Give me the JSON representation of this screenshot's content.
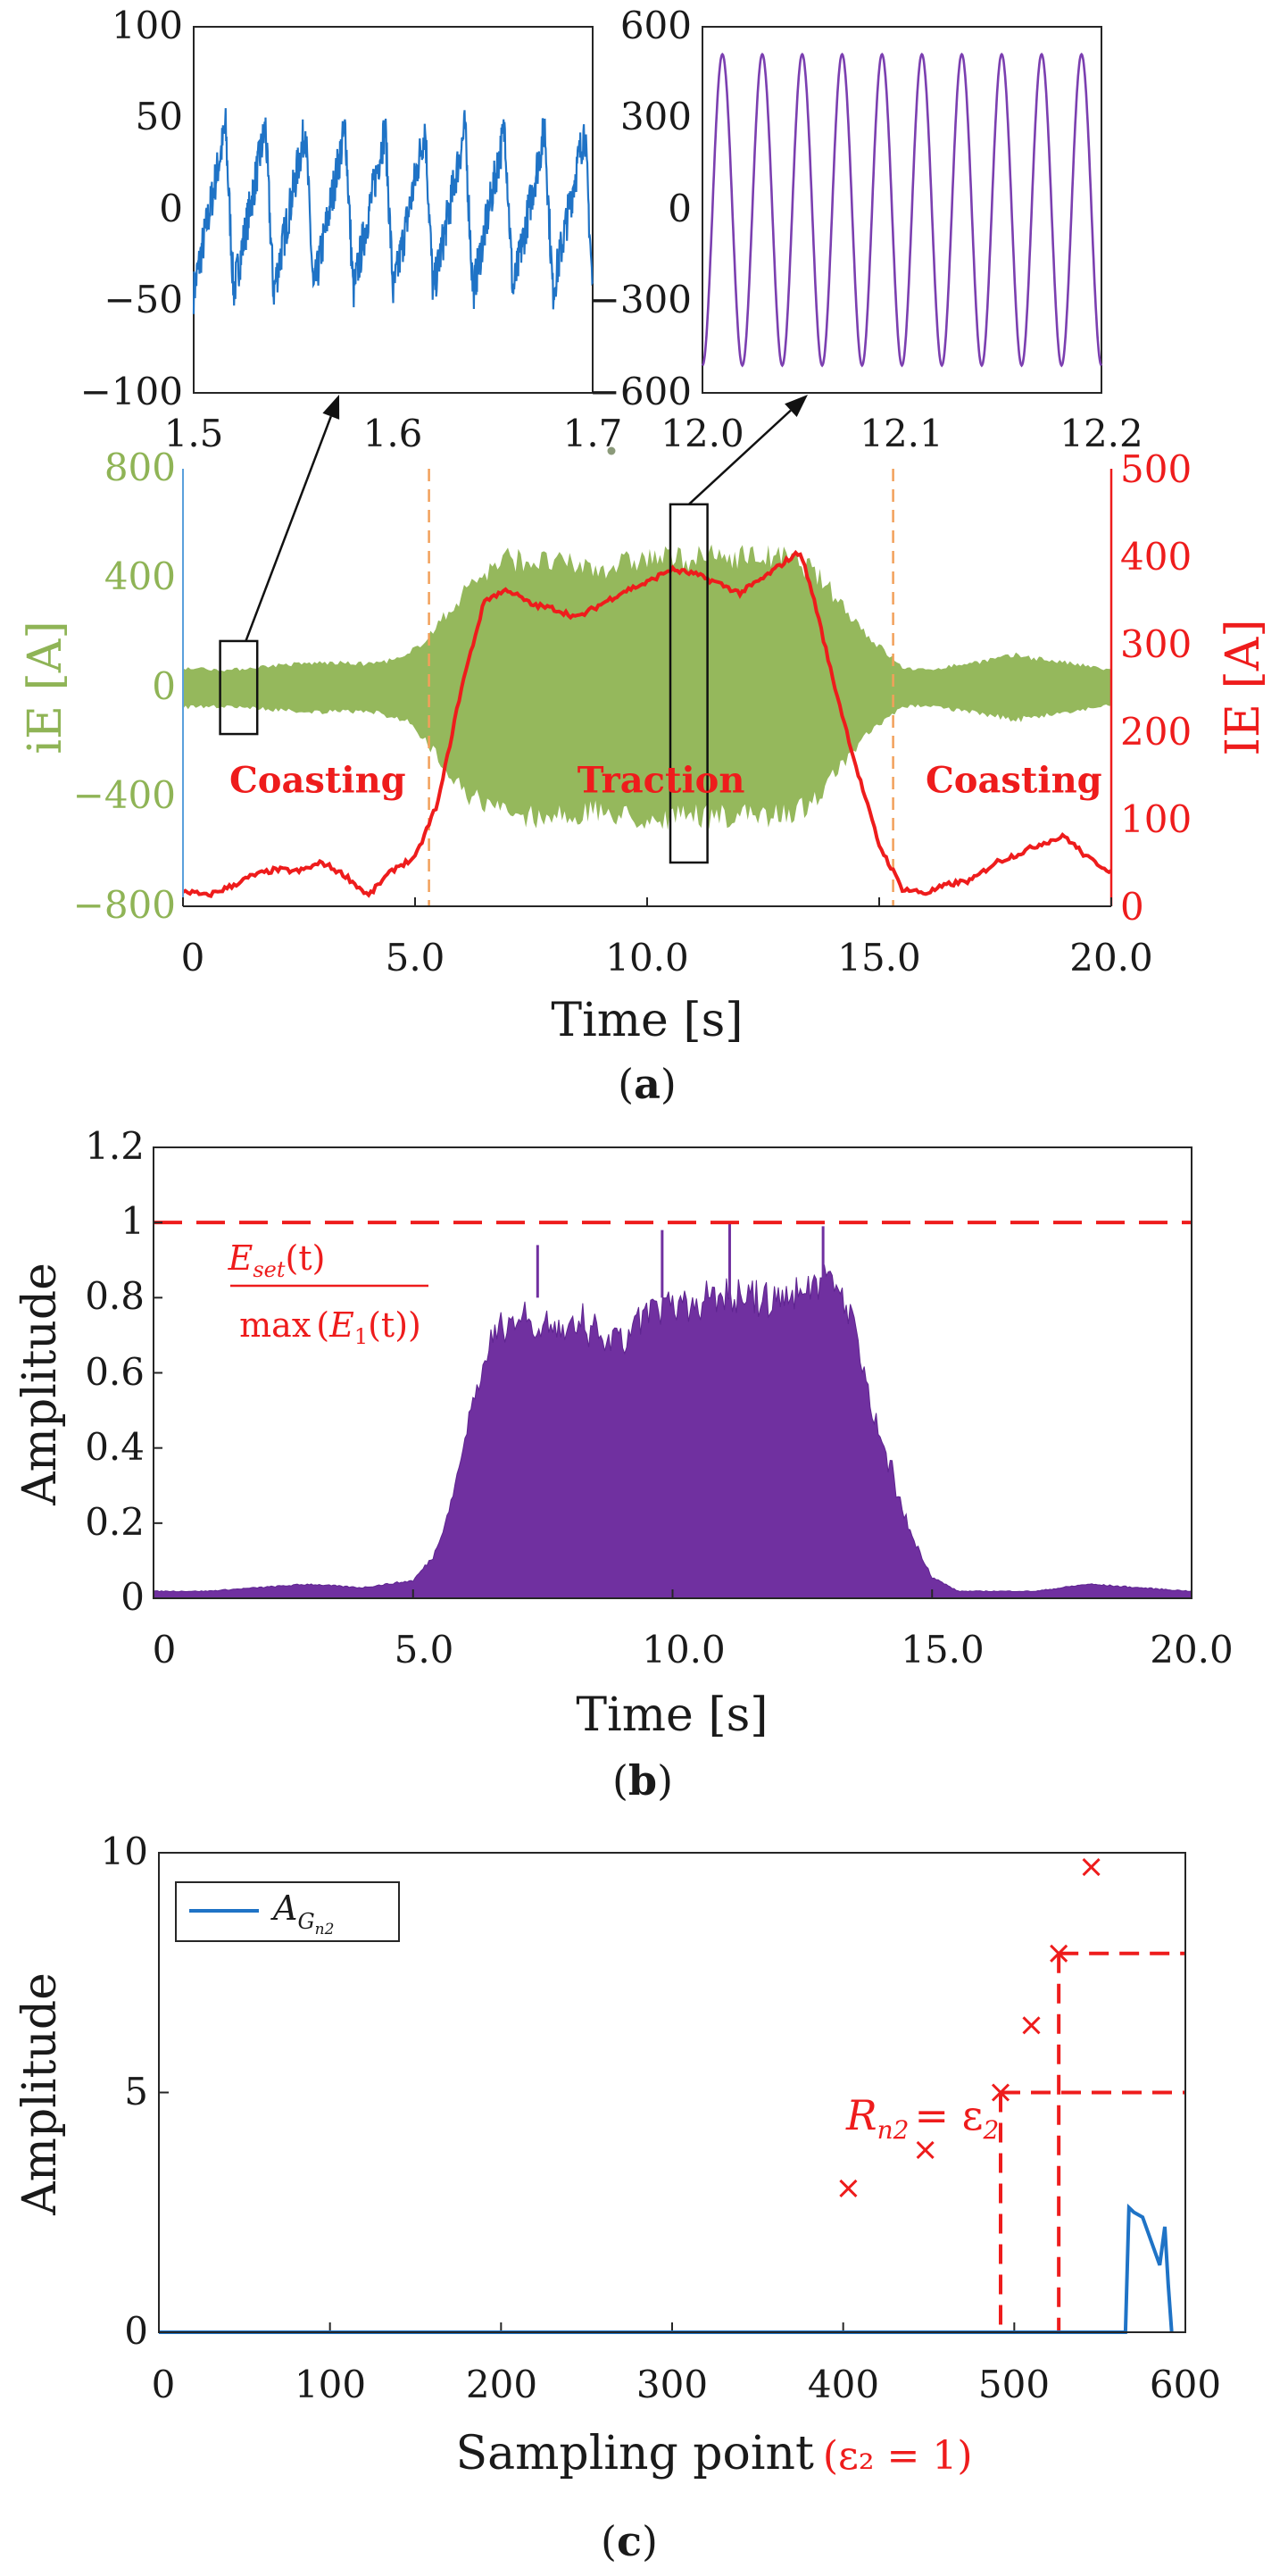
{
  "chart_data": [
    {
      "id": "inset-left",
      "type": "line",
      "xlim": [
        1.5,
        1.7
      ],
      "ylim": [
        -100,
        100
      ],
      "xticks": [
        1.5,
        1.6,
        1.7
      ],
      "xtick_labels": [
        "1.5",
        "1.6",
        "1.7"
      ],
      "yticks": [
        -100,
        -50,
        0,
        50,
        100
      ],
      "ytick_labels": [
        "−100",
        "−50",
        "0",
        "50",
        "100"
      ],
      "color": "#1f73c6",
      "signal": {
        "amplitude": 45,
        "cycles": 10,
        "noise": 12
      }
    },
    {
      "id": "inset-right",
      "type": "line",
      "xlim": [
        12.0,
        12.2
      ],
      "ylim": [
        -600,
        600
      ],
      "xticks": [
        12.0,
        12.1,
        12.2
      ],
      "xtick_labels": [
        "12.0",
        "12.1",
        "12.2"
      ],
      "yticks": [
        -600,
        -300,
        0,
        300,
        600
      ],
      "ytick_labels": [
        "−600",
        "−300",
        "0",
        "300",
        "600"
      ],
      "color": "#7b3fb0",
      "signal": {
        "amplitude": 510,
        "cycles": 10
      }
    },
    {
      "id": "panel-a",
      "type": "line",
      "caption": "a",
      "xlabel": "Time [s]",
      "ylabel_left": "iE [A]",
      "ylabel_right": "IE [A]",
      "xlim": [
        0,
        20
      ],
      "ylim_left": [
        -800,
        800
      ],
      "ylim_right": [
        0,
        500
      ],
      "xticks": [
        0,
        5,
        10,
        15,
        20
      ],
      "xtick_labels": [
        "0",
        "5.0",
        "10.0",
        "15.0",
        "20.0"
      ],
      "yticks_left": [
        -800,
        -400,
        0,
        400,
        800
      ],
      "ytick_left_labels": [
        "−800",
        "−400",
        "0",
        "400",
        "800"
      ],
      "yticks_right": [
        0,
        100,
        200,
        300,
        400,
        500
      ],
      "ytick_right_labels": [
        "0",
        "100",
        "200",
        "300",
        "400",
        "500"
      ],
      "left_color": "#8fb456",
      "right_color": "#ee1c1c",
      "vlines": [
        5.3,
        15.3
      ],
      "vline_color": "#f2a05a",
      "phase_labels": [
        {
          "text": "Coasting",
          "x": 2.9,
          "y": -400
        },
        {
          "text": "Traction",
          "x": 10.3,
          "y": -400
        },
        {
          "text": "Coasting",
          "x": 17.9,
          "y": -400
        }
      ],
      "iE_envelope": {
        "name": "iE",
        "x": [
          0,
          1,
          2,
          3,
          4,
          4.8,
          5.5,
          6.2,
          7,
          8,
          9,
          10,
          11,
          12,
          13,
          13.5,
          14,
          14.8,
          15.5,
          16,
          17,
          18,
          19,
          20
        ],
        "upper": [
          80,
          70,
          90,
          100,
          95,
          120,
          250,
          420,
          520,
          500,
          480,
          520,
          520,
          530,
          520,
          480,
          380,
          200,
          80,
          70,
          100,
          130,
          100,
          70
        ],
        "lower": [
          -80,
          -75,
          -90,
          -100,
          -95,
          -130,
          -280,
          -440,
          -510,
          -520,
          -500,
          -530,
          -520,
          -520,
          -510,
          -470,
          -360,
          -180,
          -80,
          -70,
          -100,
          -130,
          -100,
          -70
        ]
      },
      "IE_series": {
        "name": "IE",
        "x": [
          0,
          0.5,
          1,
          1.5,
          2,
          2.5,
          3,
          3.5,
          4,
          4.3,
          4.6,
          5,
          5.5,
          6,
          6.5,
          7,
          7.5,
          8,
          8.5,
          9,
          9.5,
          10,
          10.5,
          11,
          11.5,
          12,
          12.5,
          13,
          13.3,
          13.6,
          14,
          14.5,
          15,
          15.5,
          16,
          16.5,
          17,
          17.5,
          18,
          18.5,
          19,
          19.5,
          20
        ],
        "y": [
          18,
          12,
          22,
          35,
          42,
          40,
          50,
          35,
          12,
          30,
          45,
          55,
          120,
          250,
          350,
          362,
          345,
          340,
          330,
          345,
          360,
          370,
          385,
          380,
          370,
          358,
          375,
          395,
          405,
          350,
          260,
          160,
          70,
          20,
          15,
          25,
          30,
          50,
          60,
          72,
          80,
          55,
          40
        ]
      },
      "zoom_boxes": [
        {
          "x": [
            0.8,
            1.6
          ],
          "y": [
            -170,
            170
          ]
        },
        {
          "x": [
            10.5,
            11.3
          ],
          "y": [
            -640,
            670
          ]
        }
      ]
    },
    {
      "id": "panel-b",
      "type": "area",
      "caption": "b",
      "xlabel": "Time [s]",
      "ylabel": "Amplitude",
      "xlim": [
        0,
        20
      ],
      "ylim": [
        0,
        1.2
      ],
      "xticks": [
        0,
        5,
        10,
        15,
        20
      ],
      "xtick_labels": [
        "0",
        "5.0",
        "10.0",
        "15.0",
        "20.0"
      ],
      "yticks": [
        0,
        0.2,
        0.4,
        0.6,
        0.8,
        1.0,
        1.2
      ],
      "ytick_labels": [
        "0",
        "0.2",
        "0.4",
        "0.6",
        "0.8",
        "1",
        "1.2"
      ],
      "color": "#7030a0",
      "threshold": 1,
      "threshold_color": "#ee1c1c",
      "annotation": {
        "numerator": "E",
        "numerator_sub": "set",
        "numerator_tail": "(t)",
        "denominator": "max",
        "denominator_inner": "E",
        "denominator_sub": "1",
        "denominator_tail": "(t)"
      },
      "envelope": {
        "x": [
          0,
          1,
          2,
          3,
          4,
          5,
          5.4,
          5.8,
          6.2,
          6.6,
          7,
          8,
          9,
          9.5,
          10,
          11,
          12,
          12.5,
          13,
          13.4,
          13.8,
          14.2,
          14.6,
          15,
          15.5,
          16,
          17,
          18,
          19,
          20
        ],
        "y": [
          0.02,
          0.02,
          0.03,
          0.04,
          0.03,
          0.05,
          0.12,
          0.3,
          0.6,
          0.75,
          0.8,
          0.76,
          0.72,
          0.8,
          0.82,
          0.86,
          0.84,
          0.88,
          0.9,
          0.82,
          0.55,
          0.35,
          0.18,
          0.06,
          0.02,
          0.02,
          0.02,
          0.04,
          0.03,
          0.02
        ]
      },
      "peaks": [
        [
          7.4,
          0.94
        ],
        [
          9.8,
          0.98
        ],
        [
          11.1,
          1.0
        ],
        [
          12.9,
          0.99
        ]
      ]
    },
    {
      "id": "panel-c",
      "type": "line",
      "caption": "c",
      "xlabel": "Sampling point",
      "xlabel_extra": "(ε₂ = 1)",
      "ylabel": "Amplitude",
      "xlim": [
        0,
        600
      ],
      "ylim": [
        0,
        10
      ],
      "xticks": [
        0,
        100,
        200,
        300,
        400,
        500,
        600
      ],
      "xtick_labels": [
        "0",
        "100",
        "200",
        "300",
        "400",
        "500",
        "600"
      ],
      "yticks": [
        0,
        5,
        10
      ],
      "ytick_labels": [
        "0",
        "5",
        "10"
      ],
      "legend": {
        "symbol": "A",
        "sub": "G",
        "subsub": "n2"
      },
      "line_color": "#1f73c6",
      "marker_color": "#ee1c1c",
      "line": {
        "x": [
          0,
          565,
          567,
          570,
          575,
          580,
          585,
          588,
          590,
          592
        ],
        "y": [
          0,
          0,
          2.6,
          2.5,
          2.4,
          1.9,
          1.4,
          2.2,
          1.0,
          0
        ]
      },
      "markers": {
        "x": [
          403,
          448,
          492,
          510,
          526,
          545
        ],
        "y": [
          3.0,
          3.8,
          5.0,
          6.4,
          7.9,
          9.7
        ]
      },
      "dashed_levels": [
        {
          "x": 492,
          "y": 5.0
        },
        {
          "x": 526,
          "y": 7.9
        }
      ],
      "annotation": {
        "left": "R",
        "left_sub": "n2",
        "right": "= ε",
        "right_sub": "2"
      }
    }
  ]
}
